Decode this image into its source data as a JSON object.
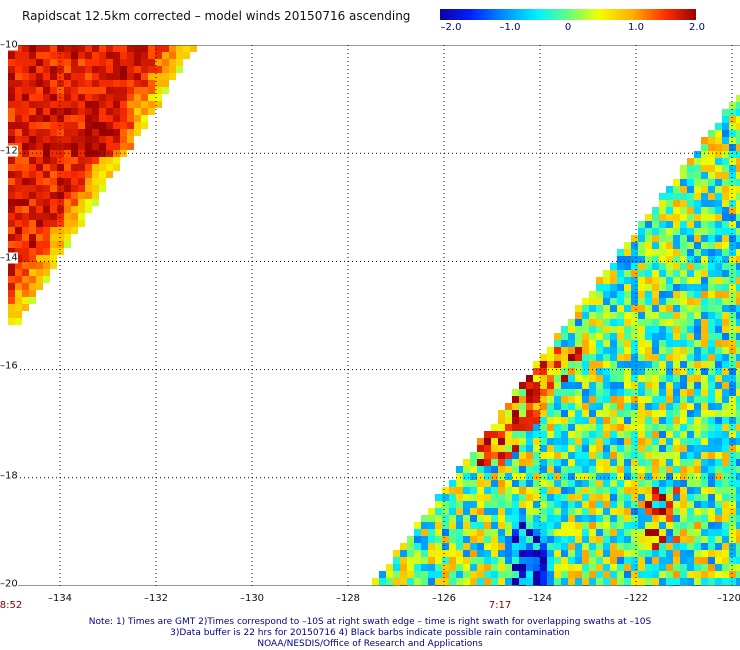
{
  "title": "Rapidscat 12.5km corrected – model winds 20150716 ascending",
  "colorbar": {
    "ticks": [
      {
        "label": "–2.0",
        "value": -2.0
      },
      {
        "label": "–1.0",
        "value": -1.0
      },
      {
        "label": "0",
        "value": 0
      },
      {
        "label": "1.0",
        "value": 1.0
      },
      {
        "label": "2.0",
        "value": 2.0
      }
    ],
    "colors": [
      "#1000a8",
      "#0020ff",
      "#0090ff",
      "#00f0ff",
      "#60ff80",
      "#f0ff00",
      "#ffb000",
      "#ff3000",
      "#9a0000"
    ]
  },
  "map": {
    "lon_range": [
      -135,
      -120
    ],
    "lat_range": [
      -20,
      -10
    ],
    "lon_ticks": [
      {
        "label": "–134",
        "value": -134
      },
      {
        "label": "–132",
        "value": -132
      },
      {
        "label": "–130",
        "value": -130
      },
      {
        "label": "–128",
        "value": -128
      },
      {
        "label": "–126",
        "value": -126
      },
      {
        "label": "–124",
        "value": -124
      },
      {
        "label": "–122",
        "value": -122
      },
      {
        "label": "–120",
        "value": -120
      }
    ],
    "lat_ticks": [
      {
        "label": "–10",
        "value": -10
      },
      {
        "label": "–12",
        "value": -12
      },
      {
        "label": "–14",
        "value": -14
      },
      {
        "label": "–16",
        "value": -16
      },
      {
        "label": "–18",
        "value": -18
      },
      {
        "label": "–20",
        "value": -20
      }
    ],
    "swath_times": [
      {
        "label": "8:52",
        "lon": -135
      },
      {
        "label": "7:17",
        "lon": -125
      }
    ]
  },
  "notes": [
    "Note: 1) Times are GMT 2)Times correspond to –10S at right swath edge – time is right swath for overlapping swaths at –10S",
    "3)Data buffer is 22 hrs for 20150716 4) Black barbs indicate possible rain contamination",
    "NOAA/NESDIS/Office of Research and Applications"
  ]
}
